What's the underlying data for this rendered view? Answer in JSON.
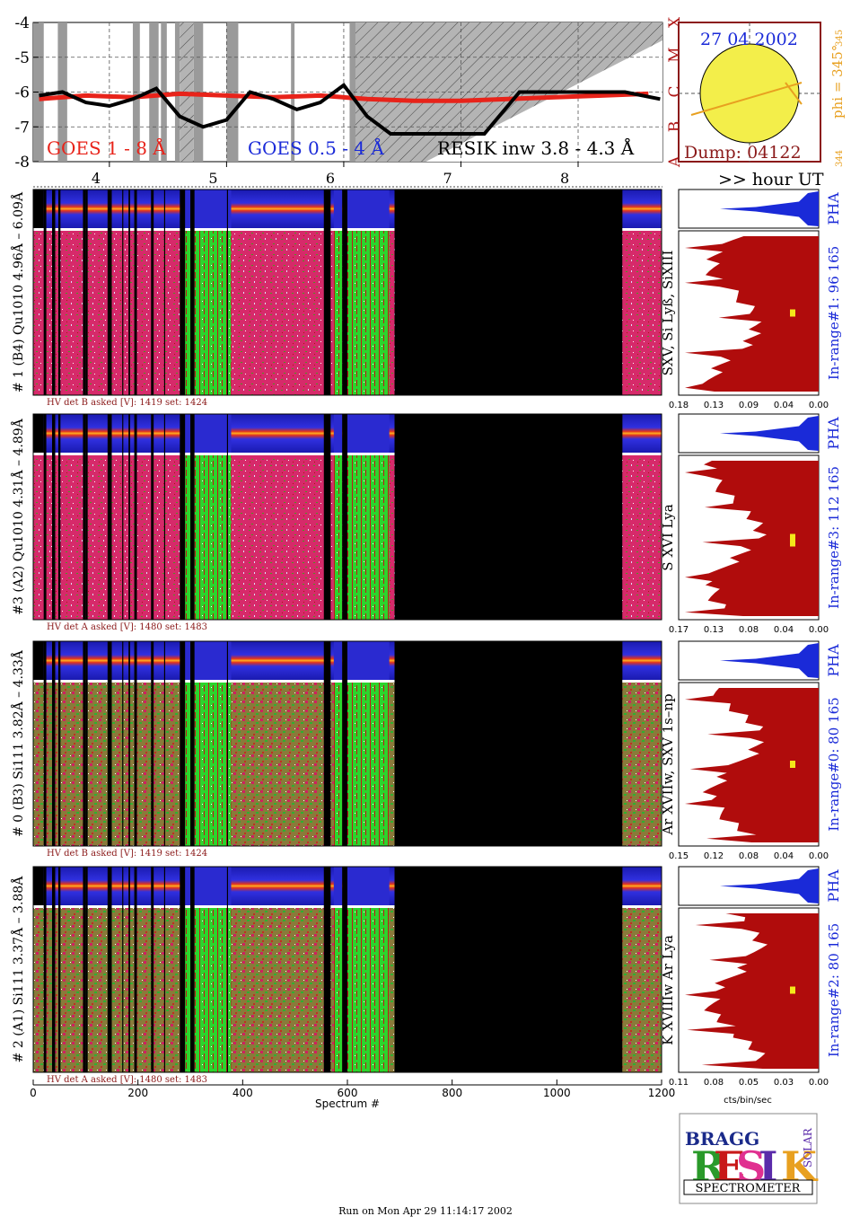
{
  "goes_panel": {
    "y_ticks": [
      "-4",
      "-5",
      "-6",
      "-7",
      "-8"
    ],
    "class_letters": [
      "X",
      "M",
      "C",
      "B",
      "A"
    ],
    "hour_ticks": [
      "4",
      "5",
      "6",
      "7",
      "8"
    ],
    "hour_axis_label": ">> hour UT",
    "legend_goes_long": "GOES 1 - 8 Å",
    "legend_goes_short": "GOES 0.5 - 4 Å",
    "legend_resik": "RESIK inw 3.8 - 4.3 Å",
    "colors": {
      "goes_long": "#e8231a",
      "goes_short": "#1a2ad8",
      "resik": "#000000",
      "shade": "#9a9a9a"
    }
  },
  "sun_panel": {
    "date": "27 04 2002",
    "dump": "Dump: 04122",
    "phi_label": "phi = 345°",
    "phi_sup": "345",
    "phi_low": "344",
    "colors": {
      "disk": "#f3ee4a",
      "frame": "#8b1a1a",
      "phi": "#e8a020"
    }
  },
  "detectors": [
    {
      "side_label": "# 1 (B4) Qu1010 4.96Å – 6.09Å",
      "hv_text": "HV det B asked [V]:  1419 set:  1424",
      "line_label": "SXV, Si Lyß, SiXIII",
      "range_label": "In-range#1:   96 165",
      "pha_label": "PHA",
      "x_ticks": [
        "0.18",
        "0.13",
        "0.09",
        "0.04",
        "0.00"
      ]
    },
    {
      "side_label": "#3 (A2) Qu1010  4.31Å – 4.89Å",
      "hv_text": "HV det A asked [V]:  1480 set:  1483",
      "line_label": "S XVI Lya",
      "range_label": "In-range#3:   112 165",
      "pha_label": "PHA",
      "x_ticks": [
        "0.17",
        "0.13",
        "0.08",
        "0.04",
        "0.00"
      ]
    },
    {
      "side_label": "# 0 (B3) Si111  3.82Å – 4.33Å",
      "hv_text": "HV det B asked [V]:  1419 set:  1424",
      "line_label": "Ar XVIIw,  SXV 1s–np",
      "range_label": "In-range#0:   80 165",
      "pha_label": "PHA",
      "x_ticks": [
        "0.15",
        "0.12",
        "0.08",
        "0.04",
        "0.00"
      ]
    },
    {
      "side_label": "# 2 (A1) Si111  3.37Å – 3.88Å",
      "hv_text": "HV det A asked [V]:  1480 set:  1483",
      "line_label": "K XVIIIw  Ar Lya",
      "range_label": "In-range#2:   80 165",
      "pha_label": "PHA",
      "x_ticks": [
        "0.11",
        "0.08",
        "0.05",
        "0.03",
        "0.00"
      ]
    }
  ],
  "spectrum_axis": {
    "ticks": [
      "0",
      "200",
      "400",
      "600",
      "800",
      "1000",
      "1200"
    ],
    "label": "Spectrum #"
  },
  "profile_axis_label": "cts/bin/sec",
  "logo": {
    "top": "BRAGG",
    "letters": "RESIK",
    "side": "SOLAR",
    "bottom": "SPECTROMETER"
  },
  "footer": "Run on Mon Apr 29 11:14:17 2002",
  "chart_data": [
    {
      "type": "line",
      "title": "",
      "xlabel": ">> hour UT",
      "ylabel": "",
      "xlim": [
        3.35,
        8.72
      ],
      "ylim": [
        -8,
        -4
      ],
      "series": [
        {
          "name": "GOES 1 - 8 Å",
          "x": [
            3.4,
            3.8,
            4.2,
            4.6,
            5.0,
            5.4,
            5.8,
            6.2,
            6.6,
            7.0,
            7.4,
            7.8,
            8.2,
            8.6
          ],
          "values": [
            -6.2,
            -6.1,
            -6.15,
            -6.05,
            -6.1,
            -6.15,
            -6.1,
            -6.2,
            -6.25,
            -6.25,
            -6.2,
            -6.15,
            -6.1,
            -6.05
          ]
        },
        {
          "name": "RESIK inw 3.8 - 4.3 Å",
          "x": [
            3.4,
            3.6,
            3.8,
            4.0,
            4.2,
            4.4,
            4.6,
            4.8,
            5.0,
            5.2,
            5.4,
            5.6,
            5.8,
            6.0,
            6.2,
            6.4,
            6.6,
            6.9,
            7.2,
            7.5,
            7.8,
            8.0,
            8.4,
            8.7
          ],
          "values": [
            -6.1,
            -6.0,
            -6.3,
            -6.4,
            -6.2,
            -5.9,
            -6.7,
            -7.0,
            -6.8,
            -6.0,
            -6.2,
            -6.5,
            -6.3,
            -5.8,
            -6.7,
            -7.2,
            -7.2,
            -7.2,
            -7.2,
            -6.0,
            -6.0,
            -6.0,
            -6.0,
            -6.2
          ]
        }
      ]
    }
  ]
}
